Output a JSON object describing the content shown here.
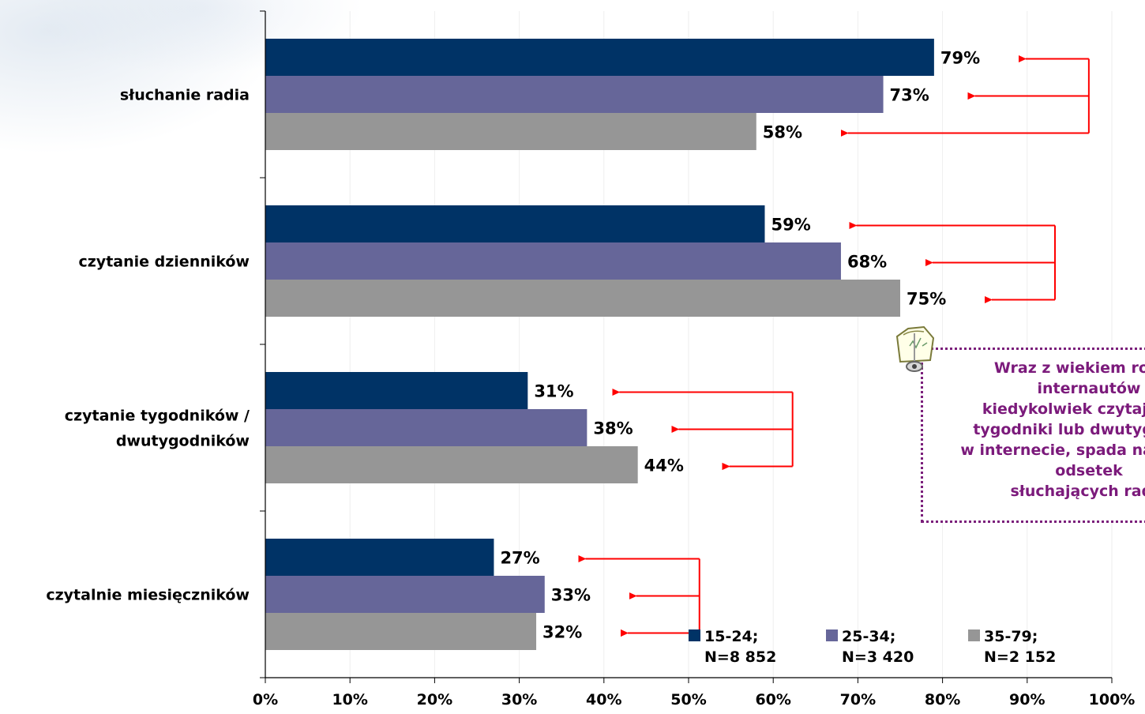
{
  "chart_data": {
    "type": "bar",
    "orientation": "horizontal",
    "categories": [
      "słuchanie radia",
      "czytanie dzienników",
      "czytanie tygodników / dwutygodników",
      "czytalnie miesięczników"
    ],
    "category_lines": [
      [
        "słuchanie radia"
      ],
      [
        "czytanie dzienników"
      ],
      [
        "czytanie tygodników /",
        "dwutygodników"
      ],
      [
        "czytalnie miesięczników"
      ]
    ],
    "series": [
      {
        "name": "15-24;",
        "sample": "N=8 852",
        "color": "#003366",
        "values": [
          79,
          59,
          31,
          27
        ],
        "labels": [
          "79%",
          "59%",
          "31%",
          "27%"
        ]
      },
      {
        "name": "25-34;",
        "sample": "N=3 420",
        "color": "#666699",
        "values": [
          73,
          68,
          38,
          33
        ],
        "labels": [
          "73%",
          "68%",
          "38%",
          "33%"
        ]
      },
      {
        "name": "35-79;",
        "sample": "N=2 152",
        "color": "#969696",
        "values": [
          58,
          75,
          44,
          32
        ],
        "labels": [
          "58%",
          "75%",
          "44%",
          "32%"
        ]
      }
    ],
    "x_ticks": [
      "0%",
      "10%",
      "20%",
      "30%",
      "40%",
      "50%",
      "60%",
      "70%",
      "80%",
      "90%",
      "100%"
    ],
    "xlim": [
      0,
      100
    ],
    "grid": true,
    "legend_position": "bottom-right",
    "arrow_color": "#ff0000",
    "title": "",
    "xlabel": "",
    "ylabel": ""
  },
  "note": {
    "lines": [
      "Wraz z wiekiem rośnie",
      "internautów",
      "kiedykolwiek czytających",
      "tygodniki lub dwutygodniki",
      "w internecie, spada natomiast",
      "odsetek",
      "słuchających radia"
    ],
    "border_color": "#7b1f7b",
    "text_color": "#7b1a7b",
    "icon": "notepad-pin-icon"
  }
}
